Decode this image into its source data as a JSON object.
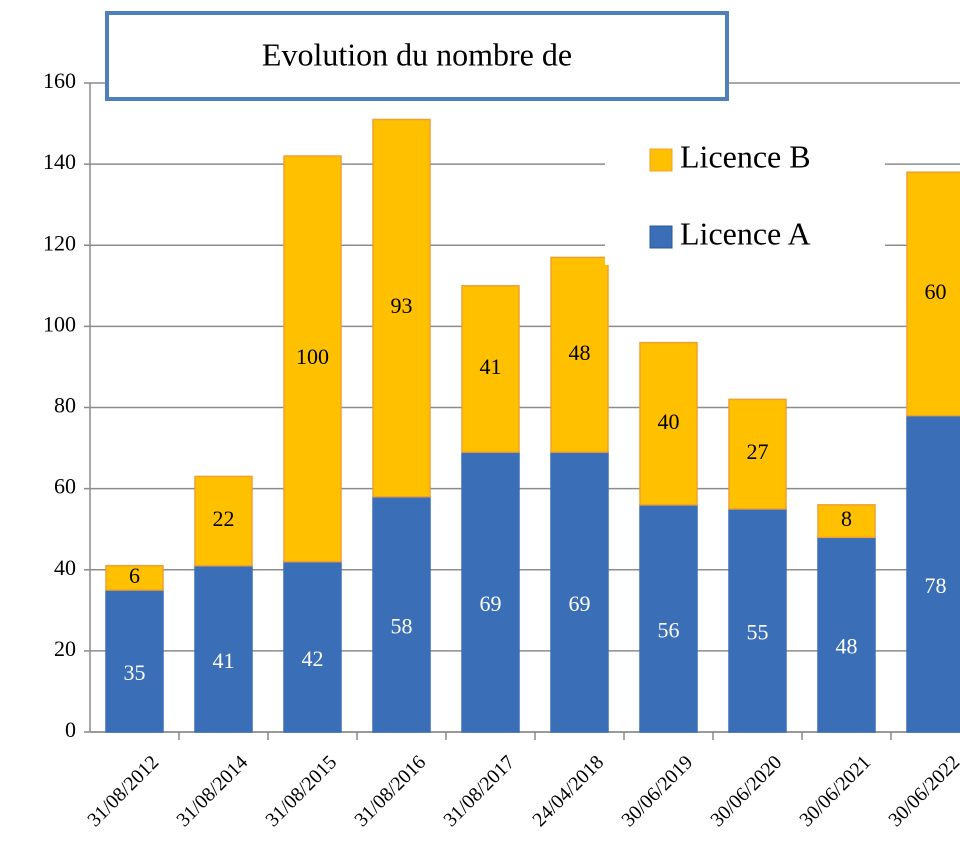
{
  "chart_data": {
    "type": "stacked_bar",
    "title": "Evolution du nombre de",
    "categories": [
      "31/08/2012",
      "31/08/2014",
      "31/08/2015",
      "31/08/2016",
      "31/08/2017",
      "24/04/2018",
      "30/06/2019",
      "30/06/2020",
      "30/06/2021",
      "30/06/2022"
    ],
    "series": [
      {
        "name": "Licence A",
        "color": "#3a6fb8",
        "values": [
          35,
          41,
          42,
          58,
          69,
          69,
          56,
          55,
          48,
          78
        ]
      },
      {
        "name": "Licence B",
        "color": "#ffc000",
        "values": [
          6,
          22,
          100,
          93,
          41,
          48,
          40,
          27,
          8,
          60
        ]
      }
    ],
    "ylim": [
      0,
      160
    ],
    "yticks": [
      0,
      20,
      40,
      60,
      80,
      100,
      120,
      140,
      160
    ],
    "grid": true
  }
}
